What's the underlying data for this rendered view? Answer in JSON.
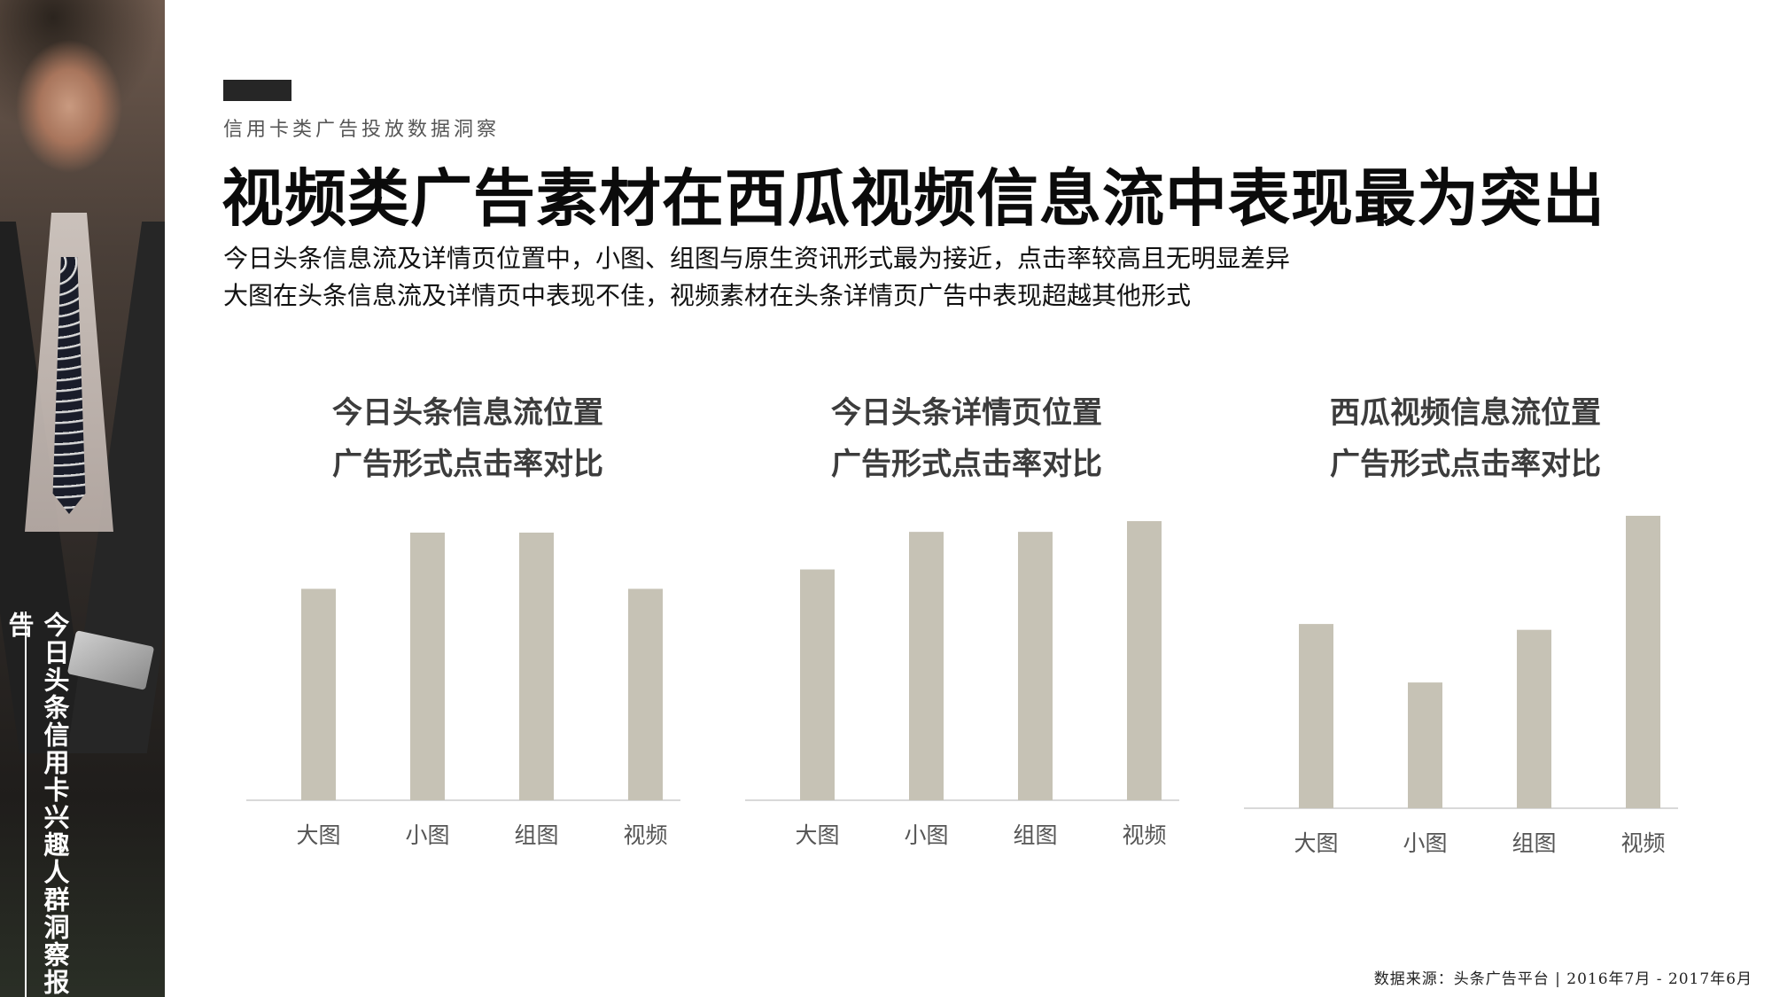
{
  "side": {
    "vertical_title": "今日头条信用卡兴趣人群洞察报告"
  },
  "header": {
    "section_label": "信用卡类广告投放数据洞察",
    "title": "视频类广告素材在西瓜视频信息流中表现最为突出",
    "subtitle_line1": "今日头条信息流及详情页位置中，小图、组图与原生资讯形式最为接近，点击率较高且无明显差异",
    "subtitle_line2": "大图在头条信息流及详情页中表现不佳，视频素材在头条详情页广告中表现超越其他形式"
  },
  "colors": {
    "bar": "#c6c2b5",
    "axis": "#d9d9d9",
    "text_dark": "#0b0b0b",
    "chart_title": "#3c3c3c"
  },
  "chart_data": [
    {
      "type": "bar",
      "title_line1": "今日头条信息流位置",
      "title_line2": "广告形式点击率对比",
      "categories": [
        "大图",
        "小图",
        "组图",
        "视频"
      ],
      "values": [
        79,
        100,
        100,
        79
      ],
      "ylim": [
        0,
        100
      ],
      "grid": false,
      "legend": "none"
    },
    {
      "type": "bar",
      "title_line1": "今日头条详情页位置",
      "title_line2": "广告形式点击率对比",
      "categories": [
        "大图",
        "小图",
        "组图",
        "视频"
      ],
      "values": [
        86,
        100,
        100,
        104
      ],
      "ylim": [
        0,
        105
      ],
      "grid": false,
      "legend": "none"
    },
    {
      "type": "bar",
      "title_line1": "西瓜视频信息流位置",
      "title_line2": "广告形式点击率对比",
      "categories": [
        "大图",
        "小图",
        "组图",
        "视频"
      ],
      "values": [
        63,
        43,
        61,
        100
      ],
      "ylim": [
        0,
        100
      ],
      "grid": false,
      "legend": "none"
    }
  ],
  "footer": {
    "source": "数据来源：头条广告平台 | 2016年7月 - 2017年6月"
  }
}
